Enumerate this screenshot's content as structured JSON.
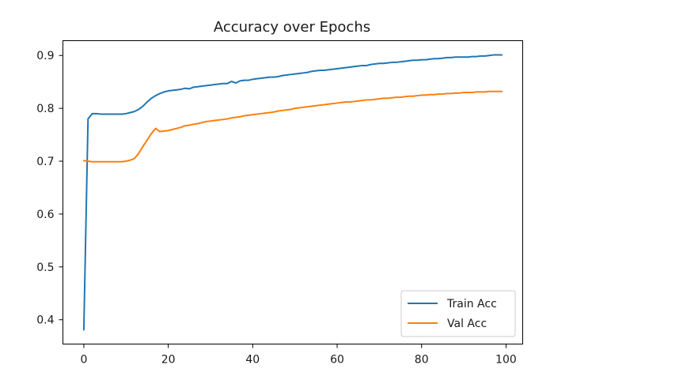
{
  "chart_data": {
    "type": "line",
    "title": "Accuracy over Epochs",
    "xlabel": "",
    "ylabel": "",
    "xlim": [
      -4.95,
      103.95
    ],
    "ylim": [
      0.354,
      0.928
    ],
    "x_ticks": [
      0,
      20,
      40,
      60,
      80,
      100
    ],
    "y_ticks": [
      0.4,
      0.5,
      0.6,
      0.7,
      0.8,
      0.9
    ],
    "x_tick_labels": [
      "0",
      "20",
      "40",
      "60",
      "80",
      "100"
    ],
    "y_tick_labels": [
      "0.4",
      "0.5",
      "0.6",
      "0.7",
      "0.8",
      "0.9"
    ],
    "grid": false,
    "legend_position": "lower-right",
    "x": [
      0,
      1,
      2,
      3,
      4,
      5,
      6,
      7,
      8,
      9,
      10,
      11,
      12,
      13,
      14,
      15,
      16,
      17,
      18,
      19,
      20,
      21,
      22,
      23,
      24,
      25,
      26,
      27,
      28,
      29,
      30,
      31,
      32,
      33,
      34,
      35,
      36,
      37,
      38,
      39,
      40,
      41,
      42,
      43,
      44,
      45,
      46,
      47,
      48,
      49,
      50,
      51,
      52,
      53,
      54,
      55,
      56,
      57,
      58,
      59,
      60,
      61,
      62,
      63,
      64,
      65,
      66,
      67,
      68,
      69,
      70,
      71,
      72,
      73,
      74,
      75,
      76,
      77,
      78,
      79,
      80,
      81,
      82,
      83,
      84,
      85,
      86,
      87,
      88,
      89,
      90,
      91,
      92,
      93,
      94,
      95,
      96,
      97,
      98,
      99
    ],
    "series": [
      {
        "name": "Train Acc",
        "color": "#1f77b4",
        "values": [
          0.381,
          0.78,
          0.79,
          0.79,
          0.789,
          0.789,
          0.789,
          0.789,
          0.789,
          0.789,
          0.79,
          0.792,
          0.794,
          0.798,
          0.804,
          0.812,
          0.819,
          0.824,
          0.828,
          0.831,
          0.833,
          0.834,
          0.835,
          0.836,
          0.838,
          0.837,
          0.84,
          0.841,
          0.842,
          0.843,
          0.844,
          0.845,
          0.846,
          0.847,
          0.847,
          0.851,
          0.848,
          0.852,
          0.853,
          0.853,
          0.855,
          0.856,
          0.857,
          0.858,
          0.859,
          0.859,
          0.86,
          0.862,
          0.863,
          0.864,
          0.865,
          0.866,
          0.867,
          0.868,
          0.87,
          0.871,
          0.872,
          0.872,
          0.873,
          0.874,
          0.875,
          0.876,
          0.877,
          0.878,
          0.879,
          0.88,
          0.881,
          0.881,
          0.883,
          0.884,
          0.885,
          0.885,
          0.886,
          0.887,
          0.887,
          0.888,
          0.889,
          0.89,
          0.891,
          0.891,
          0.892,
          0.892,
          0.893,
          0.894,
          0.894,
          0.895,
          0.896,
          0.896,
          0.897,
          0.897,
          0.897,
          0.897,
          0.898,
          0.898,
          0.899,
          0.899,
          0.9,
          0.901,
          0.901,
          0.901
        ]
      },
      {
        "name": "Val Acc",
        "color": "#ff7f0e",
        "values": [
          0.701,
          0.7,
          0.699,
          0.699,
          0.699,
          0.699,
          0.699,
          0.699,
          0.699,
          0.699,
          0.7,
          0.702,
          0.705,
          0.715,
          0.728,
          0.74,
          0.752,
          0.762,
          0.756,
          0.757,
          0.758,
          0.76,
          0.762,
          0.764,
          0.767,
          0.768,
          0.77,
          0.771,
          0.773,
          0.775,
          0.776,
          0.777,
          0.778,
          0.779,
          0.78,
          0.782,
          0.783,
          0.784,
          0.786,
          0.787,
          0.788,
          0.789,
          0.79,
          0.791,
          0.792,
          0.793,
          0.795,
          0.796,
          0.797,
          0.798,
          0.8,
          0.801,
          0.802,
          0.803,
          0.804,
          0.805,
          0.806,
          0.807,
          0.808,
          0.809,
          0.81,
          0.811,
          0.812,
          0.812,
          0.813,
          0.814,
          0.815,
          0.816,
          0.816,
          0.817,
          0.818,
          0.819,
          0.819,
          0.82,
          0.821,
          0.821,
          0.822,
          0.823,
          0.823,
          0.824,
          0.825,
          0.825,
          0.826,
          0.826,
          0.827,
          0.827,
          0.828,
          0.828,
          0.829,
          0.829,
          0.83,
          0.83,
          0.83,
          0.831,
          0.831,
          0.831,
          0.832,
          0.832,
          0.832,
          0.832
        ]
      }
    ]
  }
}
